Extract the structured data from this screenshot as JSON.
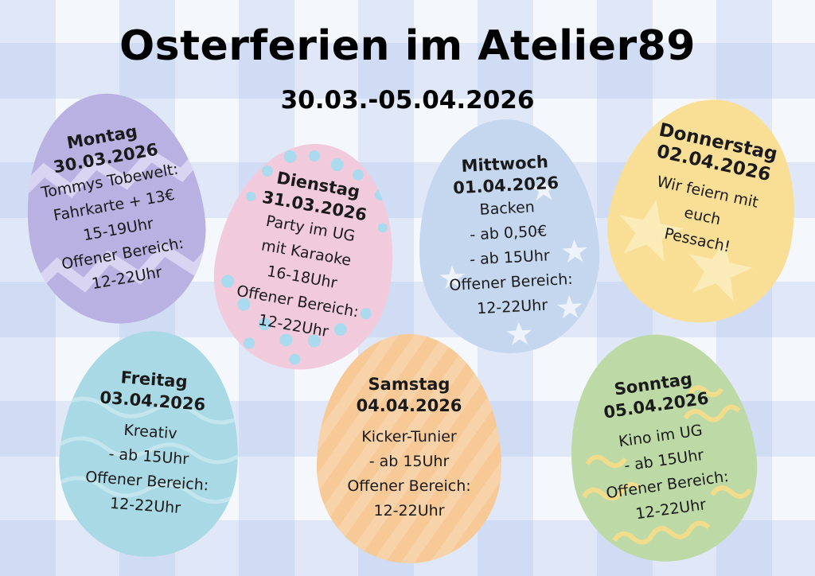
{
  "title": "Osterferien im Atelier89",
  "subtitle": "30.03.-05.04.2026",
  "colors": {
    "montag": "#b9b1e2",
    "dienstag": "#f1cbdc",
    "mittwoch": "#c5d7ef",
    "donnerstag": "#f8df95",
    "freitag": "#a9d9e5",
    "samstag": "#f6c996",
    "sonntag": "#bcd9a6"
  },
  "days": {
    "montag": {
      "day": "Montag",
      "date": "30.03.2026",
      "lines": [
        "Tommys Tobewelt:",
        "Fahrkarte + 13€",
        "15-19Uhr",
        "Offener Bereich:",
        "12-22Uhr"
      ]
    },
    "dienstag": {
      "day": "Dienstag",
      "date": "31.03.2026",
      "lines": [
        "Party im UG",
        "mit Karaoke",
        "16-18Uhr",
        "Offener Bereich:",
        "12-22Uhr"
      ]
    },
    "mittwoch": {
      "day": "Mittwoch",
      "date": "01.04.2026",
      "lines": [
        "Backen",
        "- ab 0,50€",
        "- ab 15Uhr",
        "Offener Bereich:",
        "12-22Uhr"
      ]
    },
    "donnerstag": {
      "day": "Donnerstag",
      "date": "02.04.2026",
      "lines": [
        "Wir feiern mit",
        "euch",
        "Pessach!"
      ]
    },
    "freitag": {
      "day": "Freitag",
      "date": "03.04.2026",
      "lines": [
        "Kreativ",
        "- ab 15Uhr",
        "Offener Bereich:",
        "12-22Uhr"
      ]
    },
    "samstag": {
      "day": "Samstag",
      "date": "04.04.2026",
      "lines": [
        "Kicker-Tunier",
        "- ab 15Uhr",
        "Offener Bereich:",
        "12-22Uhr"
      ]
    },
    "sonntag": {
      "day": "Sonntag",
      "date": "05.04.2026",
      "lines": [
        "Kino im UG",
        "- ab 15Uhr",
        "Offener Bereich:",
        "12-22Uhr"
      ]
    }
  }
}
